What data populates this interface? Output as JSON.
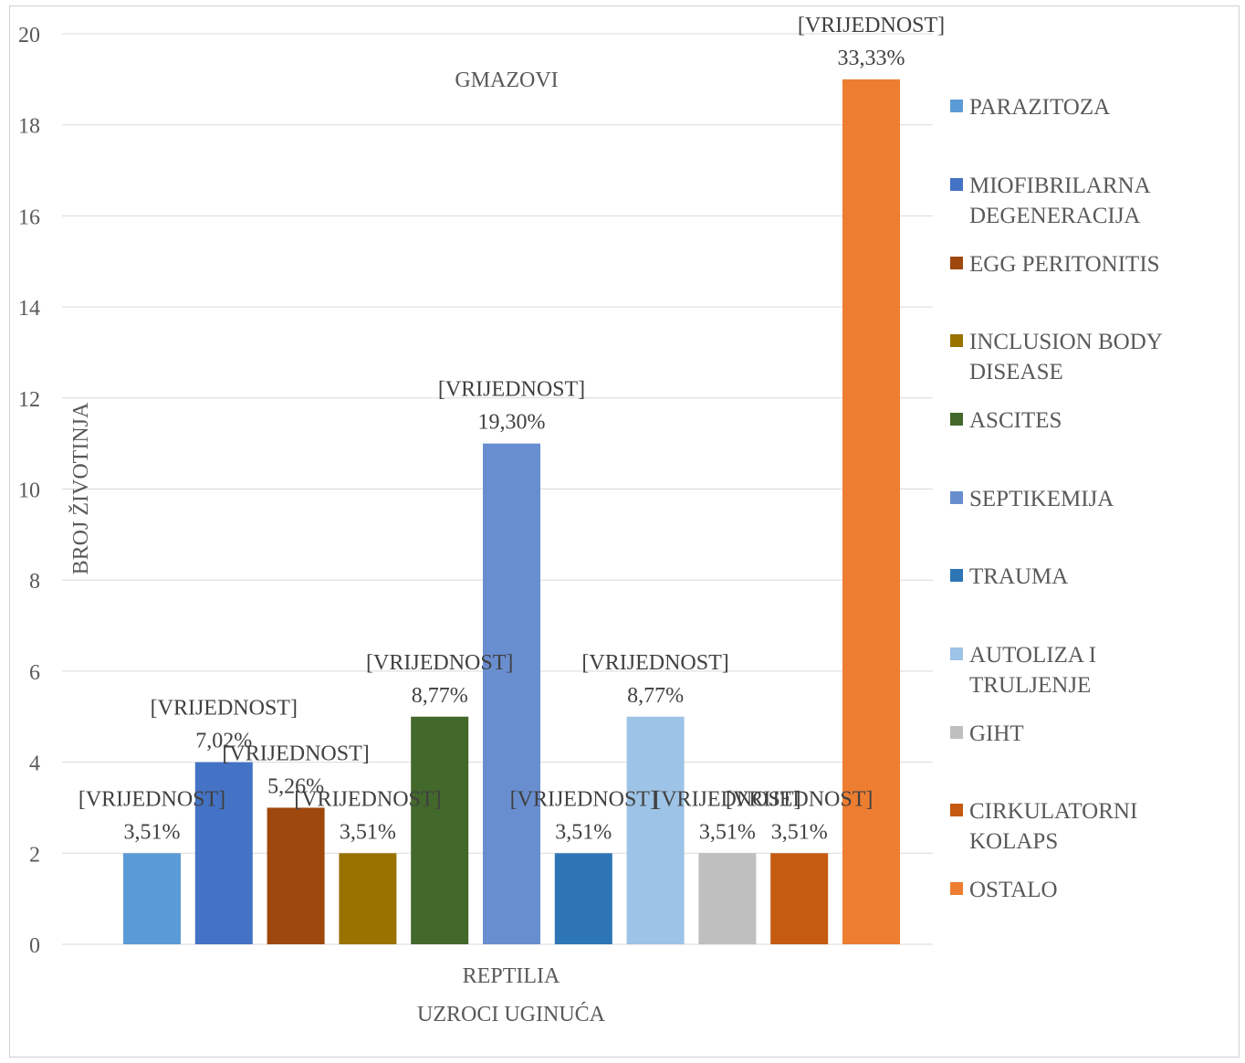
{
  "chart_data": {
    "type": "bar",
    "title": "GMAZOVI",
    "ylabel": "BROJ ŽIVOTINJA",
    "category": "REPTILIA",
    "xlabel": "UZROCI UGINUĆA",
    "ylim": [
      0,
      20
    ],
    "yticks": [
      "0",
      "2",
      "4",
      "6",
      "8",
      "10",
      "12",
      "14",
      "16",
      "18",
      "20"
    ],
    "grid": true,
    "legend_position": "right",
    "series": [
      {
        "name": "PARAZITOZA",
        "value": 2,
        "label": "[VRIJEDNOST]",
        "percent": "3,51%",
        "color": "#5B9BD5"
      },
      {
        "name": "MIOFIBRILARNA DEGENERACIJA",
        "value": 4,
        "label": "[VRIJEDNOST]",
        "percent": "7,02%",
        "color": "#4472C4"
      },
      {
        "name": "EGG PERITONITIS",
        "value": 3,
        "label": "[VRIJEDNOST]",
        "percent": "5,26%",
        "color": "#9E480E"
      },
      {
        "name": "INCLUSION BODY DISEASE",
        "value": 2,
        "label": "[VRIJEDNOST]",
        "percent": "3,51%",
        "color": "#997300"
      },
      {
        "name": "ASCITES",
        "value": 5,
        "label": "[VRIJEDNOST]",
        "percent": "8,77%",
        "color": "#43682B"
      },
      {
        "name": "SEPTIKEMIJA",
        "value": 11,
        "label": "[VRIJEDNOST]",
        "percent": "19,30%",
        "color": "#698ED0"
      },
      {
        "name": "TRAUMA",
        "value": 2,
        "label": "[VRIJEDNOST]",
        "percent": "3,51%",
        "color": "#2E75B6"
      },
      {
        "name": "AUTOLIZA I TRULJENJE",
        "value": 5,
        "label": "[VRIJEDNOST]",
        "percent": "8,77%",
        "color": "#9DC3E6"
      },
      {
        "name": "GIHT",
        "value": 2,
        "label": "[VRIJEDNOST]",
        "percent": "3,51%",
        "color": "#BFBFBF"
      },
      {
        "name": "CIRKULATORNI KOLAPS",
        "value": 2,
        "label": "[VRIJEDNOST]",
        "percent": "3,51%",
        "color": "#C55A11"
      },
      {
        "name": "OSTALO",
        "value": 19,
        "label": "[VRIJEDNOST]",
        "percent": "33,33%",
        "color": "#ED7D31"
      }
    ]
  }
}
